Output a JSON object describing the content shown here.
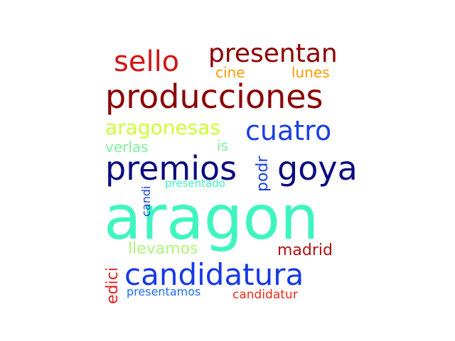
{
  "words": [
    {
      "id": "aragon",
      "text": "aragon",
      "color": "#3ef5c0"
    },
    {
      "id": "producciones",
      "text": "producciones",
      "color": "#8b0000"
    },
    {
      "id": "premios",
      "text": "premios",
      "color": "#0b0b80"
    },
    {
      "id": "goya",
      "text": "goya",
      "color": "#0b0b80"
    },
    {
      "id": "candidatura",
      "text": "candidatura",
      "color": "#1838e8"
    },
    {
      "id": "presentan",
      "text": "presentan",
      "color": "#8b0000"
    },
    {
      "id": "sello",
      "text": "sello",
      "color": "#d41414"
    },
    {
      "id": "cuatro",
      "text": "cuatro",
      "color": "#1a3fe0"
    },
    {
      "id": "aragonesas",
      "text": "aragonesas",
      "color": "#ccff33"
    },
    {
      "id": "cine",
      "text": "cine",
      "color": "#ff9900"
    },
    {
      "id": "lunes",
      "text": "lunes",
      "color": "#ff9900"
    },
    {
      "id": "verlas",
      "text": "verlas",
      "color": "#7ef0a0"
    },
    {
      "id": "is",
      "text": "is",
      "color": "#7ef0a0"
    },
    {
      "id": "podr",
      "text": "podr",
      "color": "#1a3fe0"
    },
    {
      "id": "candi",
      "text": "candi",
      "color": "#1a3fe0"
    },
    {
      "id": "presentado",
      "text": "presentado",
      "color": "#3ef5c0"
    },
    {
      "id": "llevamos",
      "text": "llevamos",
      "color": "#b0f57a"
    },
    {
      "id": "madrid",
      "text": "madrid",
      "color": "#b01010"
    },
    {
      "id": "edici",
      "text": "edici",
      "color": "#e02020"
    },
    {
      "id": "presentamos",
      "text": "presentamos",
      "color": "#1a6ef0"
    },
    {
      "id": "candidatur",
      "text": "candidatur",
      "color": "#ee2a1a"
    }
  ]
}
